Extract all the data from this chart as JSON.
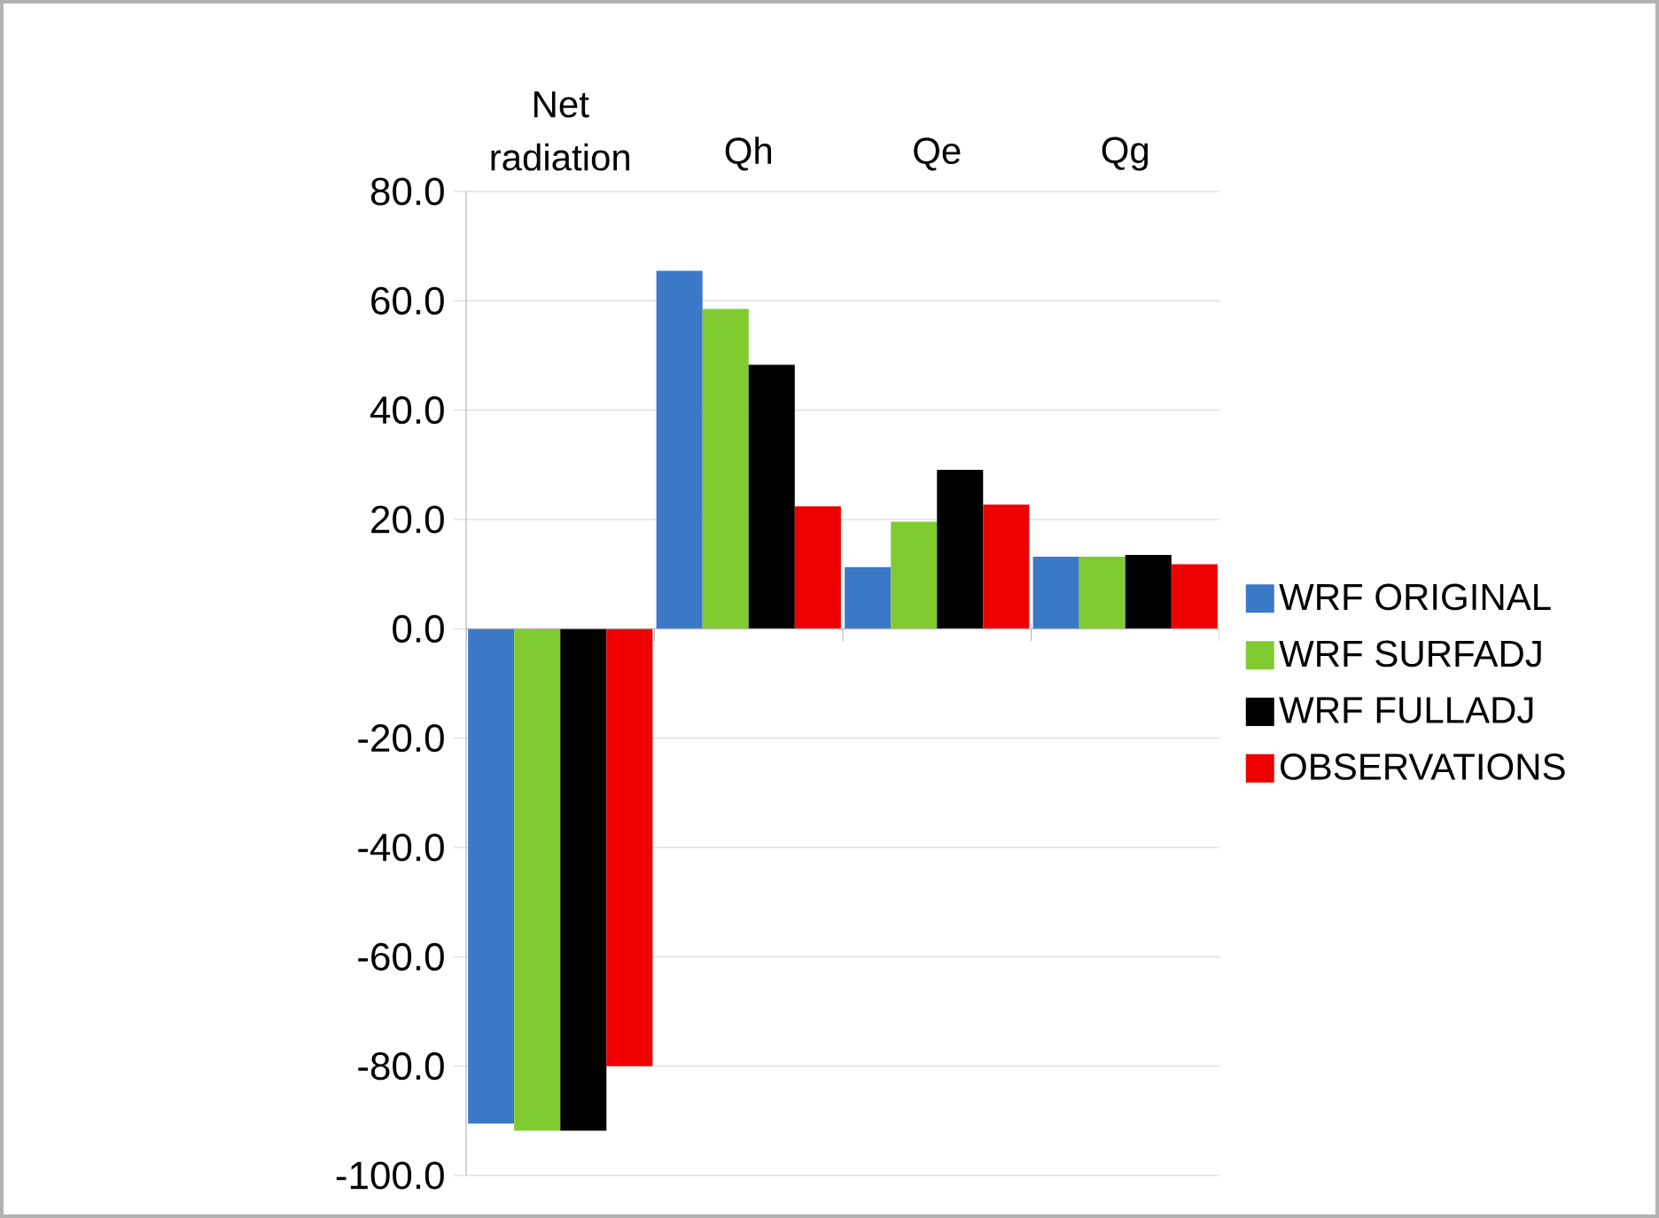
{
  "chart_data": {
    "type": "bar",
    "categories": [
      "Net radiation",
      "Qh",
      "Qe",
      "Qg"
    ],
    "series": [
      {
        "name": "WRF ORIGINAL",
        "color": "#3c78c8",
        "values": [
          -90.5,
          65.5,
          11.3,
          13.2
        ]
      },
      {
        "name": "WRF SURFADJ",
        "color": "#80cc30",
        "values": [
          -91.8,
          58.5,
          19.6,
          13.2
        ]
      },
      {
        "name": "WRF FULLADJ",
        "color": "#000000",
        "values": [
          -91.8,
          48.3,
          29.1,
          13.5
        ]
      },
      {
        "name": "OBSERVATIONS",
        "color": "#ee0000",
        "values": [
          -80.0,
          22.4,
          22.7,
          11.8
        ]
      }
    ],
    "ylim": [
      -100,
      80
    ],
    "yticks": [
      {
        "value": -100,
        "label": "-100.0"
      },
      {
        "value": -80,
        "label": "-80.0"
      },
      {
        "value": -60,
        "label": "-60.0"
      },
      {
        "value": -40,
        "label": "-40.0"
      },
      {
        "value": -20,
        "label": "-20.0"
      },
      {
        "value": 0,
        "label": "0.0"
      },
      {
        "value": 20,
        "label": "20.0"
      },
      {
        "value": 40,
        "label": "40.0"
      },
      {
        "value": 60,
        "label": "60.0"
      },
      {
        "value": 80,
        "label": "80.0"
      }
    ],
    "grid": "y",
    "legend": "right"
  }
}
